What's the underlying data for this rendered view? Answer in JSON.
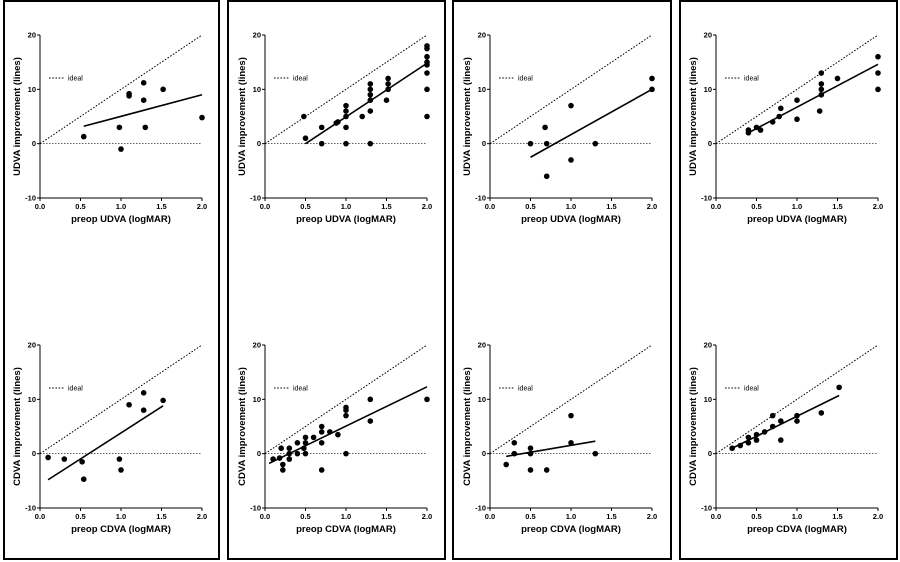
{
  "panels": [
    {
      "charts": [
        {
          "type": "scatter",
          "xlabel": "preop UDVA (logMAR)",
          "ylabel": "UDVA improvement (lines)",
          "xlim": [
            0,
            2
          ],
          "ylim": [
            -10,
            20
          ],
          "xticks": [
            "0.0",
            "0.5",
            "1.0",
            "1.5",
            "2.0"
          ],
          "yticks": [
            "-10",
            "0",
            "10",
            "20"
          ],
          "legend": "ideal",
          "points": [
            [
              0.54,
              1.3
            ],
            [
              0.98,
              3
            ],
            [
              1.0,
              -1
            ],
            [
              1.1,
              8.8
            ],
            [
              1.1,
              9.2
            ],
            [
              1.28,
              11.2
            ],
            [
              1.28,
              8
            ],
            [
              1.3,
              3
            ],
            [
              1.52,
              10
            ],
            [
              2.0,
              4.8
            ]
          ],
          "fit": [
            [
              0.54,
              3.2
            ],
            [
              2.0,
              9
            ]
          ]
        },
        {
          "type": "scatter",
          "xlabel": "preop CDVA (logMAR)",
          "ylabel": "CDVA improvement (lines)",
          "xlim": [
            0,
            2
          ],
          "ylim": [
            -10,
            20
          ],
          "xticks": [
            "0.0",
            "0.5",
            "1.0",
            "1.5",
            "2.0"
          ],
          "yticks": [
            "-10",
            "0",
            "10",
            "20"
          ],
          "legend": "ideal",
          "points": [
            [
              0.1,
              -0.7
            ],
            [
              0.3,
              -1
            ],
            [
              0.52,
              -1.5
            ],
            [
              0.54,
              -4.7
            ],
            [
              0.98,
              -1
            ],
            [
              1.0,
              -3
            ],
            [
              1.1,
              9
            ],
            [
              1.28,
              11.2
            ],
            [
              1.28,
              8
            ],
            [
              1.52,
              9.8
            ]
          ],
          "fit": [
            [
              0.1,
              -4.8
            ],
            [
              1.52,
              8.8
            ]
          ]
        }
      ]
    },
    {
      "charts": [
        {
          "type": "scatter",
          "xlabel": "preop UDVA (logMAR)",
          "ylabel": "UDVA improvement (lines)",
          "xlim": [
            0,
            2
          ],
          "ylim": [
            -10,
            20
          ],
          "xticks": [
            "0.0",
            "0.5",
            "1.0",
            "1.5",
            "2.0"
          ],
          "yticks": [
            "-10",
            "0",
            "10",
            "20"
          ],
          "legend": "ideal",
          "points": [
            [
              0.48,
              5
            ],
            [
              0.5,
              1
            ],
            [
              0.7,
              0
            ],
            [
              0.7,
              3
            ],
            [
              0.88,
              3.8
            ],
            [
              0.9,
              4
            ],
            [
              1.0,
              0
            ],
            [
              1.0,
              3
            ],
            [
              1.0,
              5
            ],
            [
              1.0,
              6
            ],
            [
              1.0,
              7
            ],
            [
              1.2,
              5
            ],
            [
              1.3,
              0
            ],
            [
              1.3,
              6
            ],
            [
              1.3,
              8
            ],
            [
              1.3,
              9
            ],
            [
              1.3,
              10
            ],
            [
              1.3,
              11
            ],
            [
              1.5,
              8
            ],
            [
              1.52,
              10
            ],
            [
              1.52,
              11
            ],
            [
              1.52,
              12
            ],
            [
              2.0,
              5
            ],
            [
              2.0,
              10
            ],
            [
              2.0,
              13
            ],
            [
              2.0,
              14.5
            ],
            [
              2.0,
              15
            ],
            [
              2.0,
              16
            ],
            [
              2.0,
              17.5
            ],
            [
              2.0,
              18
            ]
          ],
          "fit": [
            [
              0.5,
              0
            ],
            [
              2.0,
              14.8
            ]
          ]
        },
        {
          "type": "scatter",
          "xlabel": "preop CDVA (logMAR)",
          "ylabel": "CDVA improvement (lines)",
          "xlim": [
            0,
            2
          ],
          "ylim": [
            -10,
            20
          ],
          "xticks": [
            "0.0",
            "0.5",
            "1.0",
            "1.5",
            "2.0"
          ],
          "yticks": [
            "-10",
            "0",
            "10",
            "20"
          ],
          "legend": "ideal",
          "points": [
            [
              0.1,
              -1
            ],
            [
              0.18,
              -0.8
            ],
            [
              0.2,
              1
            ],
            [
              0.22,
              -2
            ],
            [
              0.22,
              -3
            ],
            [
              0.3,
              0
            ],
            [
              0.3,
              1
            ],
            [
              0.3,
              -1
            ],
            [
              0.4,
              2
            ],
            [
              0.4,
              0
            ],
            [
              0.48,
              1
            ],
            [
              0.5,
              0
            ],
            [
              0.5,
              2
            ],
            [
              0.5,
              3
            ],
            [
              0.6,
              3
            ],
            [
              0.7,
              2
            ],
            [
              0.7,
              4
            ],
            [
              0.7,
              5
            ],
            [
              0.7,
              -3
            ],
            [
              0.8,
              4
            ],
            [
              0.9,
              3.5
            ],
            [
              1.0,
              7
            ],
            [
              1.0,
              8
            ],
            [
              1.0,
              8.5
            ],
            [
              1.0,
              0
            ],
            [
              1.3,
              6
            ],
            [
              1.3,
              10
            ],
            [
              2.0,
              10
            ]
          ],
          "fit": [
            [
              0.05,
              -1.8
            ],
            [
              2.0,
              12.3
            ]
          ]
        }
      ]
    },
    {
      "charts": [
        {
          "type": "scatter",
          "xlabel": "preop UDVA (logMAR)",
          "ylabel": "UDVA improvement (lines)",
          "xlim": [
            0,
            2
          ],
          "ylim": [
            -10,
            20
          ],
          "xticks": [
            "0.0",
            "0.5",
            "1.0",
            "1.5",
            "2.0"
          ],
          "yticks": [
            "-10",
            "0",
            "10",
            "20"
          ],
          "legend": "ideal",
          "points": [
            [
              0.5,
              0
            ],
            [
              0.68,
              3
            ],
            [
              0.7,
              0
            ],
            [
              0.7,
              -6
            ],
            [
              1.0,
              7
            ],
            [
              1.0,
              -3
            ],
            [
              1.3,
              0
            ],
            [
              2.0,
              10
            ],
            [
              2.0,
              12
            ]
          ],
          "fit": [
            [
              0.5,
              -2.5
            ],
            [
              2.0,
              10
            ]
          ]
        },
        {
          "type": "scatter",
          "xlabel": "preop CDVA (logMAR)",
          "ylabel": "CDVA improvement (lines)",
          "xlim": [
            0,
            2
          ],
          "ylim": [
            -10,
            20
          ],
          "xticks": [
            "0.0",
            "0.5",
            "1.0",
            "1.5",
            "2.0"
          ],
          "yticks": [
            "-10",
            "0",
            "10",
            "20"
          ],
          "legend": "ideal",
          "points": [
            [
              0.2,
              -2
            ],
            [
              0.3,
              2
            ],
            [
              0.3,
              0
            ],
            [
              0.5,
              1
            ],
            [
              0.5,
              0
            ],
            [
              0.5,
              -3
            ],
            [
              0.7,
              -3
            ],
            [
              1.0,
              7
            ],
            [
              1.0,
              2
            ],
            [
              1.3,
              0
            ]
          ],
          "fit": [
            [
              0.2,
              -0.5
            ],
            [
              1.3,
              2.3
            ]
          ]
        }
      ]
    },
    {
      "charts": [
        {
          "type": "scatter",
          "xlabel": "preop UDVA (logMAR)",
          "ylabel": "UDVA improvement (lines)",
          "xlim": [
            0,
            2
          ],
          "ylim": [
            -10,
            20
          ],
          "xticks": [
            "0.0",
            "0.5",
            "1.0",
            "1.5",
            "2.0"
          ],
          "yticks": [
            "-10",
            "0",
            "10",
            "20"
          ],
          "legend": "ideal",
          "points": [
            [
              0.4,
              2
            ],
            [
              0.4,
              2.5
            ],
            [
              0.5,
              3
            ],
            [
              0.55,
              2.5
            ],
            [
              0.7,
              4
            ],
            [
              0.78,
              5
            ],
            [
              0.8,
              6.5
            ],
            [
              1.0,
              4.5
            ],
            [
              1.0,
              8
            ],
            [
              1.28,
              6
            ],
            [
              1.3,
              9
            ],
            [
              1.3,
              10
            ],
            [
              1.3,
              11
            ],
            [
              1.3,
              13
            ],
            [
              1.5,
              12
            ],
            [
              2.0,
              10
            ],
            [
              2.0,
              13
            ],
            [
              2.0,
              16
            ]
          ],
          "fit": [
            [
              0.4,
              2
            ],
            [
              2.0,
              14.6
            ]
          ]
        },
        {
          "type": "scatter",
          "xlabel": "preop CDVA (logMAR)",
          "ylabel": "CDVA improvement (lines)",
          "xlim": [
            0,
            2
          ],
          "ylim": [
            -10,
            20
          ],
          "xticks": [
            "0.0",
            "0.5",
            "1.0",
            "1.5",
            "2.0"
          ],
          "yticks": [
            "-10",
            "0",
            "10",
            "20"
          ],
          "legend": "ideal",
          "points": [
            [
              0.2,
              1
            ],
            [
              0.3,
              1.5
            ],
            [
              0.4,
              2
            ],
            [
              0.4,
              3
            ],
            [
              0.5,
              2.5
            ],
            [
              0.5,
              3.5
            ],
            [
              0.6,
              4
            ],
            [
              0.7,
              5
            ],
            [
              0.7,
              7
            ],
            [
              0.8,
              2.5
            ],
            [
              0.8,
              6
            ],
            [
              1.0,
              6
            ],
            [
              1.0,
              7
            ],
            [
              1.3,
              7.5
            ],
            [
              1.52,
              12.2
            ]
          ],
          "fit": [
            [
              0.2,
              1
            ],
            [
              1.52,
              10.7
            ]
          ]
        }
      ]
    }
  ]
}
